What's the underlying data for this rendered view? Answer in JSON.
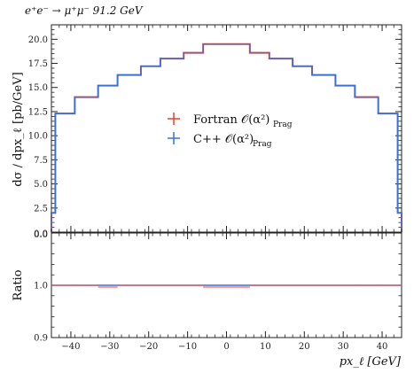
{
  "header": {
    "process": "e⁺e⁻ → μ⁺μ⁻ 91.2 GeV"
  },
  "legend": {
    "entries": [
      {
        "label": "Fortran 𝒪(α²)",
        "sub": "Prag",
        "color": "#e8402a"
      },
      {
        "label": "C++ 𝒪(α²)",
        "sub": "Prag",
        "color": "#3b6fd8"
      }
    ]
  },
  "main_panel": {
    "ylabel": "dσ / dpx_ℓ [pb/GeV]",
    "yticks": [
      "2.5",
      "5.0",
      "7.5",
      "10.0",
      "12.5",
      "15.0",
      "17.5",
      "20.0"
    ],
    "ytick_values": [
      2.5,
      5.0,
      7.5,
      10.0,
      12.5,
      15.0,
      17.5,
      20.0
    ],
    "ylim": [
      0,
      21.5
    ],
    "zero_labels": [
      "0.0",
      "0.0"
    ]
  },
  "ratio_panel": {
    "ylabel": "Ratio",
    "yticks": [
      "0.9",
      "1.0"
    ],
    "ytick_values": [
      0.9,
      1.0
    ],
    "ylim": [
      0.9,
      1.1
    ]
  },
  "x_axis": {
    "label": "px_ℓ [GeV]",
    "ticks": [
      "−40",
      "−30",
      "−20",
      "−10",
      "0",
      "10",
      "20",
      "30",
      "40"
    ],
    "tick_values": [
      -40,
      -30,
      -20,
      -10,
      0,
      10,
      20,
      30,
      40
    ],
    "xlim": [
      -45,
      45
    ]
  },
  "chart_data": {
    "type": "line",
    "title": "e⁺e⁻ → μ⁺μ⁻ 91.2 GeV",
    "xlabel": "px_ℓ [GeV]",
    "ylabel": "dσ / dpx_ℓ [pb/GeV]",
    "xlim": [
      -45,
      45
    ],
    "ylim": [
      0,
      21.5
    ],
    "bin_edges": [
      -45,
      -44,
      -39,
      -33,
      -28,
      -22,
      -17,
      -11,
      -6,
      6,
      11,
      17,
      22,
      28,
      33,
      39,
      44,
      45
    ],
    "series": [
      {
        "name": "Fortran 𝒪(α²) Prag",
        "color": "#e8402a",
        "values": [
          2.0,
          12.3,
          14.0,
          15.2,
          16.3,
          17.2,
          18.0,
          18.6,
          19.5,
          18.6,
          18.0,
          17.2,
          16.3,
          15.2,
          14.0,
          12.3,
          2.0
        ]
      },
      {
        "name": "C++ 𝒪(α²) Prag",
        "color": "#3b6fd8",
        "values": [
          2.0,
          12.3,
          14.0,
          15.2,
          16.3,
          17.2,
          18.0,
          18.6,
          19.5,
          18.6,
          18.0,
          17.2,
          16.3,
          15.2,
          14.0,
          12.3,
          2.0
        ]
      }
    ],
    "ratio": {
      "ylabel": "Ratio",
      "ylim": [
        0.9,
        1.1
      ],
      "reference_line": 1.0,
      "fortran_values": [
        1.0,
        1.0,
        1.0,
        0.998,
        1.0,
        1.0,
        1.0,
        1.0,
        0.998,
        1.0,
        1.0,
        1.0,
        1.0,
        1.0,
        1.0,
        1.0,
        1.0
      ]
    },
    "grid": false,
    "legend_position": "center"
  }
}
